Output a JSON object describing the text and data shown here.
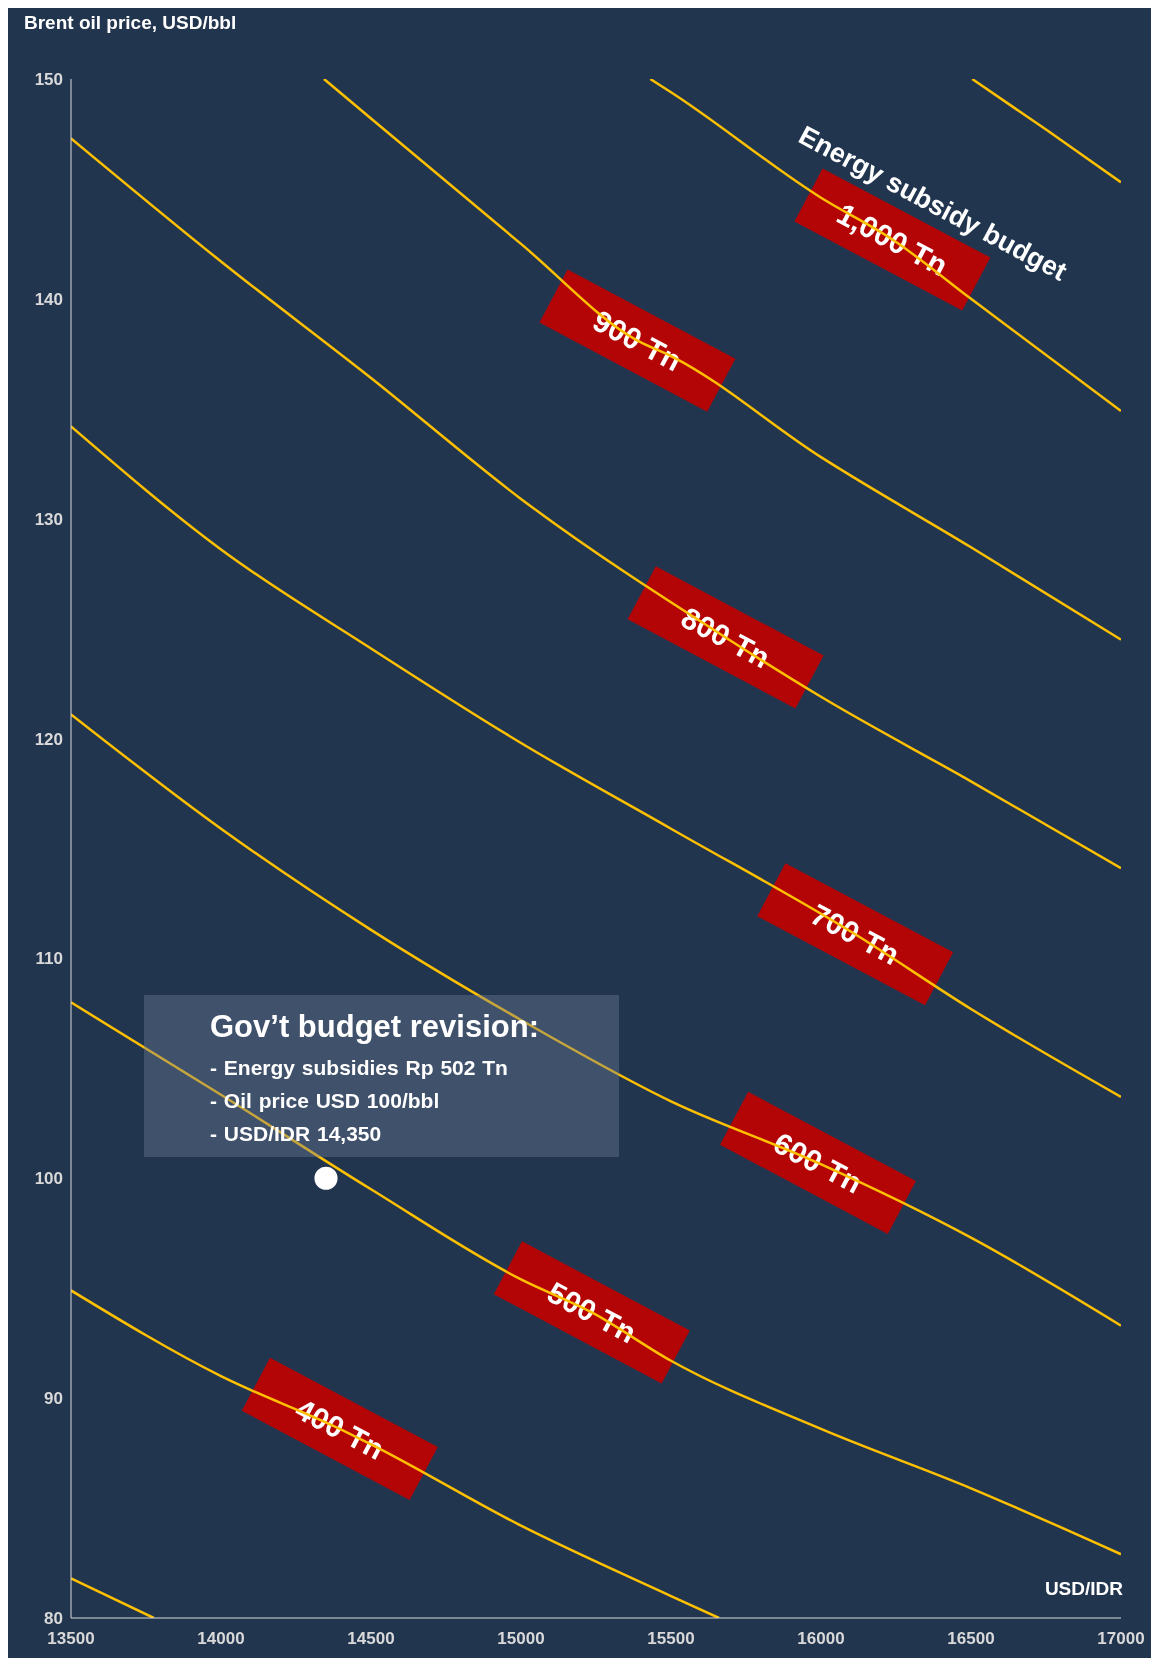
{
  "chart_data": {
    "type": "line",
    "xlabel": "USD/IDR",
    "ylabel": "Brent oil price, USD/bbl",
    "xlim": [
      13500,
      17000
    ],
    "xticks": [
      13500,
      14000,
      14500,
      15000,
      15500,
      16000,
      16500,
      17000
    ],
    "ylim": [
      80,
      150
    ],
    "yticks": [
      80,
      90,
      100,
      110,
      120,
      130,
      140,
      150
    ],
    "grid": false,
    "legend": false,
    "marker": "none",
    "line_style": "solid",
    "series": [
      {
        "color": "#ffc000",
        "x": [
          13500,
          13776
        ],
        "values": [
          81.8,
          80
        ]
      },
      {
        "color": "#ffc000",
        "x": [
          13500,
          14000,
          14396,
          14500,
          15000,
          15500,
          15660
        ],
        "values": [
          94.9,
          91.0,
          88.6,
          87.9,
          84.2,
          81.0,
          80
        ]
      },
      {
        "color": "#ffc000",
        "x": [
          13500,
          14000,
          14500,
          15000,
          15236,
          15500,
          16000,
          16500,
          17000
        ],
        "values": [
          108.0,
          103.8,
          99.5,
          95.4,
          93.9,
          91.7,
          88.6,
          85.9,
          82.9
        ]
      },
      {
        "color": "#ffc000",
        "x": [
          13500,
          14000,
          14500,
          15000,
          15500,
          15990,
          16500,
          17000
        ],
        "values": [
          121.1,
          115.9,
          111.3,
          107.2,
          103.5,
          100.7,
          97.3,
          93.3
        ]
      },
      {
        "color": "#ffc000",
        "x": [
          13500,
          14000,
          14500,
          15000,
          15500,
          16114,
          16500,
          17000
        ],
        "values": [
          134.2,
          128.6,
          124.1,
          119.8,
          115.9,
          111.1,
          107.7,
          103.7
        ]
      },
      {
        "color": "#ffc000",
        "x": [
          13500,
          14000,
          14500,
          15000,
          15682,
          16000,
          16507,
          17000
        ],
        "values": [
          147.3,
          141.7,
          136.4,
          130.9,
          124.6,
          121.9,
          118.0,
          114.1
        ]
      },
      {
        "color": "#ffc000",
        "x": [
          14343,
          14500,
          15000,
          15388,
          15500,
          16000,
          16500,
          17000
        ],
        "values": [
          150,
          148.2,
          142.5,
          138.1,
          137.4,
          132.8,
          128.7,
          124.5
        ]
      },
      {
        "color": "#ffc000",
        "x": [
          15431,
          15500,
          16000,
          16238,
          16500,
          17000
        ],
        "values": [
          150,
          149.4,
          144.6,
          142.7,
          140.0,
          134.9
        ]
      },
      {
        "color": "#ffc000",
        "x": [
          16504,
          16750,
          17000
        ],
        "values": [
          150,
          147.7,
          145.3
        ]
      },
      {
        "type": "scatter",
        "color": "#ffffff",
        "marker": "circle",
        "x": [
          14350
        ],
        "values": [
          100
        ]
      }
    ],
    "annotations": [
      "Energy subsidy budget",
      "Gov’t budget revision:",
      "- Energy subsidies Rp 502 Tn",
      "- Oil price USD 100/bbl",
      "- USD/IDR 14,350",
      {
        "text": "400 Tn",
        "x": 14396,
        "y": 88.6
      },
      {
        "text": "500 Tn",
        "x": 15236,
        "y": 93.9
      },
      {
        "text": "600 Tn",
        "x": 15990,
        "y": 100.7
      },
      {
        "text": "700 Tn",
        "x": 16114,
        "y": 111.1
      },
      {
        "text": "800 Tn",
        "x": 15682,
        "y": 124.6
      },
      {
        "text": "900 Tn",
        "x": 15388,
        "y": 138.1
      },
      {
        "text": "1,000 Tn",
        "x": 16238,
        "y": 142.7
      }
    ]
  }
}
